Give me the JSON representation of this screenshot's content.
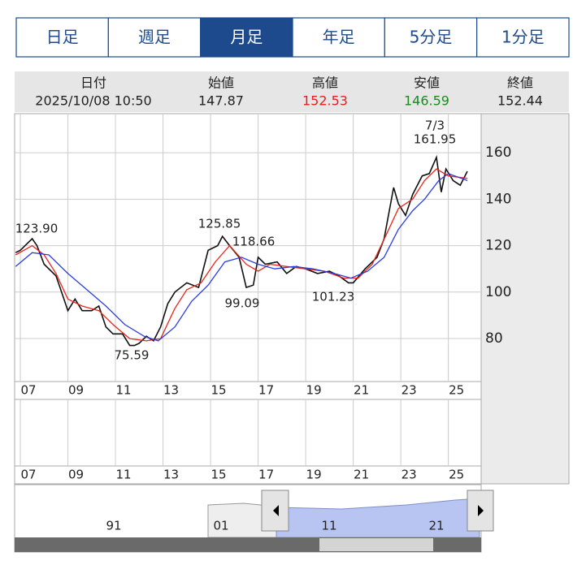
{
  "tabs": [
    "日足",
    "週足",
    "月足",
    "年足",
    "5分足",
    "1分足"
  ],
  "active_tab": 2,
  "info": [
    {
      "label": "日付",
      "value": "2025/10/08 10:50",
      "color": "#222222"
    },
    {
      "label": "始値",
      "value": "147.87",
      "color": "#222222"
    },
    {
      "label": "高値",
      "value": "152.53",
      "color": "#e0201c"
    },
    {
      "label": "安値",
      "value": "146.59",
      "color": "#1c8a1c"
    },
    {
      "label": "終値",
      "value": "152.44",
      "color": "#222222"
    }
  ],
  "chart_data": {
    "type": "line",
    "xlim": [
      2006.76,
      2026.38
    ],
    "ylim": [
      61.5,
      176.8
    ],
    "xticks": [
      {
        "value": 2007,
        "label": "07"
      },
      {
        "value": 2009,
        "label": "09"
      },
      {
        "value": 2011,
        "label": "11"
      },
      {
        "value": 2013,
        "label": "13"
      },
      {
        "value": 2015,
        "label": "15"
      },
      {
        "value": 2017,
        "label": "17"
      },
      {
        "value": 2019,
        "label": "19"
      },
      {
        "value": 2021,
        "label": "21"
      },
      {
        "value": 2023,
        "label": "23"
      },
      {
        "value": 2025,
        "label": "25"
      }
    ],
    "yticks": [
      80,
      100,
      120,
      140,
      160
    ],
    "grid": true,
    "series": [
      {
        "color": "#111111",
        "x": [
          2006.8,
          2007.0,
          2007.5,
          2007.7,
          2008.0,
          2008.5,
          2008.8,
          2009.0,
          2009.3,
          2009.6,
          2010.0,
          2010.3,
          2010.6,
          2010.9,
          2011.3,
          2011.6,
          2011.8,
          2012.0,
          2012.3,
          2012.6,
          2012.9,
          2013.2,
          2013.5,
          2014.0,
          2014.5,
          2014.9,
          2015.3,
          2015.5,
          2015.8,
          2016.2,
          2016.5,
          2016.8,
          2017.0,
          2017.3,
          2017.8,
          2018.2,
          2018.6,
          2019.0,
          2019.5,
          2020.0,
          2020.4,
          2020.8,
          2021.0,
          2021.5,
          2022.0,
          2022.3,
          2022.7,
          2022.9,
          2023.2,
          2023.5,
          2023.9,
          2024.2,
          2024.5,
          2024.7,
          2024.9,
          2025.2,
          2025.5,
          2025.8
        ],
        "values": [
          117,
          118,
          123,
          120,
          112,
          107,
          98,
          92,
          97,
          92,
          92,
          94,
          85,
          82,
          82,
          77,
          77,
          78,
          81,
          79,
          85,
          95,
          100,
          104,
          102,
          118,
          120,
          124,
          120,
          115,
          102,
          103,
          115,
          112,
          113,
          108,
          111,
          110,
          108,
          109,
          107,
          104,
          104,
          110,
          115,
          123,
          145,
          138,
          133,
          142,
          150,
          151,
          158,
          143,
          153,
          148,
          146,
          152
        ]
      },
      {
        "color": "#e8261c",
        "x": [
          2006.8,
          2007.5,
          2008.0,
          2008.5,
          2009.0,
          2009.6,
          2010.3,
          2010.9,
          2011.6,
          2012.3,
          2012.9,
          2013.5,
          2014.0,
          2014.6,
          2015.2,
          2015.8,
          2016.5,
          2017.0,
          2017.5,
          2018.2,
          2019.0,
          2019.8,
          2020.6,
          2021.2,
          2021.8,
          2022.4,
          2022.9,
          2023.5,
          2024.0,
          2024.5,
          2025.0,
          2025.8
        ],
        "values": [
          116,
          120,
          116,
          108,
          97,
          94,
          92,
          86,
          80,
          79,
          80,
          93,
          101,
          104,
          113,
          120,
          112,
          109,
          112,
          111,
          110,
          109,
          106,
          106,
          112,
          125,
          136,
          140,
          148,
          153,
          150,
          149
        ]
      },
      {
        "color": "#2b3ee0",
        "x": [
          2006.8,
          2007.5,
          2008.2,
          2009.0,
          2009.8,
          2010.6,
          2011.4,
          2012.2,
          2012.8,
          2013.5,
          2014.2,
          2014.9,
          2015.6,
          2016.3,
          2017.0,
          2017.7,
          2018.5,
          2019.3,
          2020.2,
          2020.9,
          2021.6,
          2022.3,
          2022.9,
          2023.5,
          2024.0,
          2024.6,
          2025.0,
          2025.8
        ],
        "values": [
          111,
          117,
          116,
          108,
          101,
          94,
          86,
          81,
          79,
          85,
          96,
          103,
          113,
          115,
          112,
          110,
          111,
          110,
          108,
          106,
          109,
          115,
          127,
          135,
          140,
          148,
          151,
          148
        ]
      }
    ],
    "annotations": [
      "123.90",
      "125.85",
      "118.66",
      "99.09",
      "101.23",
      "75.59",
      "7/3",
      "161.95"
    ]
  },
  "navigator": {
    "labels": [
      "91",
      "01",
      "11",
      "21"
    ]
  }
}
